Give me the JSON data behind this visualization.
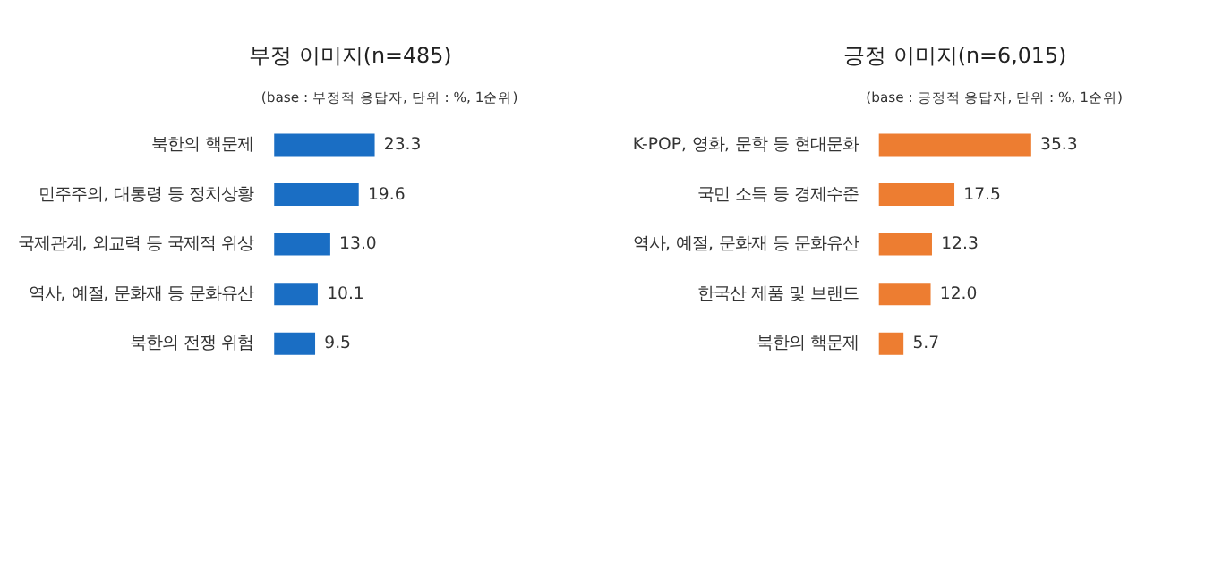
{
  "chart_data": [
    {
      "type": "bar",
      "orientation": "horizontal",
      "title": "부정 이미지(n=485)",
      "annotations": [
        "(base : 부정적 응답자, 단위 : %, 1순위)"
      ],
      "categories": [
        "북한의 핵문제",
        "민주주의, 대통령 등 정치상황",
        "국제관계, 외교력 등 국제적 위상",
        "역사, 예절, 문화재 등 문화유산",
        "북한의 전쟁 위험"
      ],
      "values": [
        23.3,
        19.6,
        13.0,
        10.1,
        9.5
      ],
      "value_labels": [
        "23.3",
        "19.6",
        "13.0",
        "10.1",
        "9.5"
      ],
      "color": "#1a6ec4",
      "grid": false,
      "legend": false
    },
    {
      "type": "bar",
      "orientation": "horizontal",
      "title": "긍정 이미지(n=6,015)",
      "annotations": [
        "(base : 긍정적 응답자, 단위 : %, 1순위)"
      ],
      "categories": [
        "K-POP, 영화, 문학 등 현대문화",
        "국민 소득 등 경제수준",
        "역사, 예절, 문화재 등 문화유산",
        "한국산 제품 및 브랜드",
        "북한의 핵문제"
      ],
      "values": [
        35.3,
        17.5,
        12.3,
        12.0,
        5.7
      ],
      "value_labels": [
        "35.3",
        "17.5",
        "12.3",
        "12.0",
        "5.7"
      ],
      "color": "#ed7d31",
      "grid": false,
      "legend": false
    }
  ]
}
